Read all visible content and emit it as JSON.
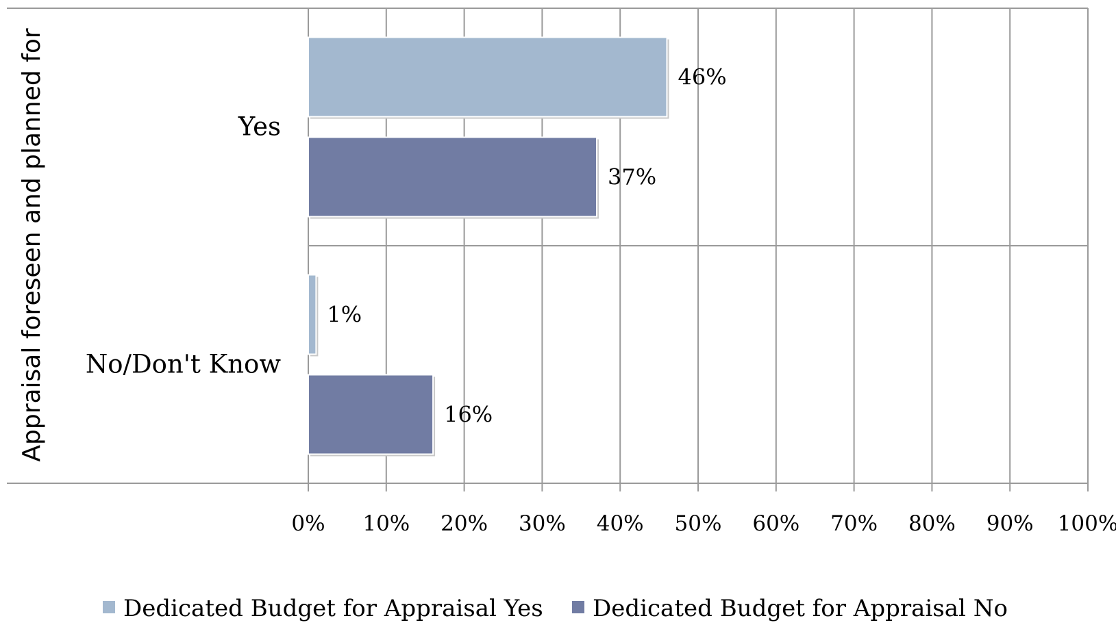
{
  "chart_data": {
    "type": "bar",
    "orientation": "horizontal",
    "categories": [
      "Yes",
      "No/Don't Know"
    ],
    "series": [
      {
        "name": "Dedicated Budget for Appraisal Yes",
        "values": [
          46,
          1
        ],
        "labels": [
          "46%",
          "1%"
        ],
        "color": "#a3b8cf"
      },
      {
        "name": "Dedicated Budget for Appraisal No",
        "values": [
          37,
          16
        ],
        "labels": [
          "37%",
          "16%"
        ],
        "color": "#717ca3"
      }
    ],
    "ylabel": "Appraisal foreseen and planned for",
    "xlabel": "",
    "xlim": [
      0,
      100
    ],
    "x_ticks": [
      "0%",
      "10%",
      "20%",
      "30%",
      "40%",
      "50%",
      "60%",
      "70%",
      "80%",
      "90%",
      "100%"
    ],
    "grid": true,
    "legend_position": "bottom"
  }
}
